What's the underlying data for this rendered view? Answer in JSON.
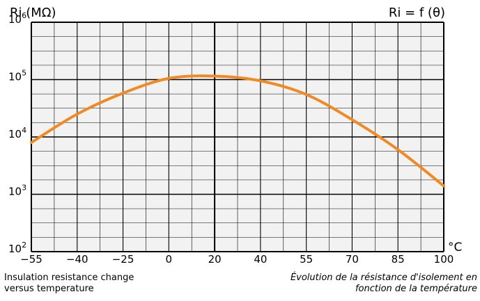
{
  "chart_data": {
    "type": "line",
    "title_left": "Ri (MΩ)",
    "title_right": "Ri = f (θ)",
    "x_unit": "°C",
    "x_ticks": [
      "−55",
      "−40",
      "−25",
      "0",
      "20",
      "40",
      "55",
      "70",
      "85",
      "100"
    ],
    "y_ticks": [
      {
        "base": "10",
        "exp": "2"
      },
      {
        "base": "10",
        "exp": "3"
      },
      {
        "base": "10",
        "exp": "4"
      },
      {
        "base": "10",
        "exp": "5"
      },
      {
        "base": "10",
        "exp": "6"
      }
    ],
    "y_scale": "log",
    "ylim": [
      100,
      1000000
    ],
    "grid": true,
    "colors": {
      "curve": "#f08a24",
      "grid": "#000000",
      "background": "#f2f2f2"
    },
    "series": [
      {
        "x_position_index": [
          0,
          1,
          2,
          3,
          4,
          5,
          6,
          7,
          8,
          9
        ],
        "x": [
          -55,
          -40,
          -25,
          0,
          20,
          40,
          55,
          70,
          85,
          100
        ],
        "y": [
          8000,
          25000,
          58000,
          105000,
          115000,
          95000,
          55000,
          20000,
          6000,
          1400
        ]
      }
    ]
  },
  "captions": {
    "en": [
      "Insulation resistance change",
      "versus temperature"
    ],
    "fr": [
      "Évolution de la résistance d'isolement en",
      "fonction de la température"
    ]
  }
}
